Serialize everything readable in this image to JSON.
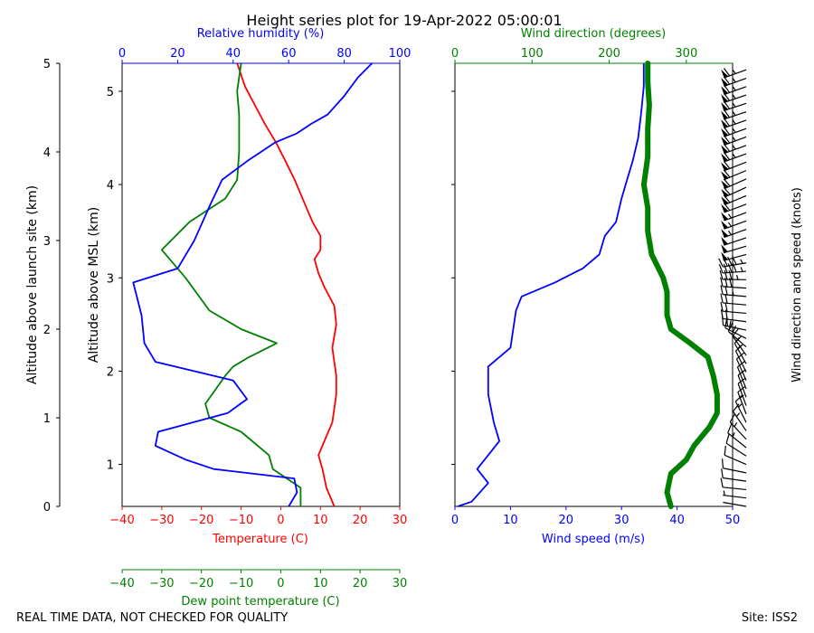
{
  "chart_data": {
    "type": "line",
    "title": "Height series plot for 19-Apr-2022 05:00:01",
    "footer_left": "REAL TIME DATA, NOT CHECKED FOR QUALITY",
    "footer_right": "Site: ISS2",
    "colors": {
      "temperature": "#ff0000",
      "dewpoint": "#008000",
      "humidity": "#0000ff",
      "wind_speed": "#0000ff",
      "wind_direction": "#008000",
      "barb": "#000000",
      "axis": "#000000"
    },
    "left_panel": {
      "ylabel_launch": "Altitude above launch site (km)",
      "ylabel_msl": "Altitude above MSL (km)",
      "temperature_axis": {
        "label": "Temperature (C)",
        "range": [
          -40,
          30
        ],
        "ticks": [
          "−40",
          "−30",
          "−20",
          "−10",
          "0",
          "10",
          "20",
          "30"
        ]
      },
      "dewpoint_axis": {
        "label": "Dew point temperature (C)",
        "range": [
          -40,
          30
        ],
        "ticks": [
          "−40",
          "−30",
          "−20",
          "−10",
          "0",
          "10",
          "20",
          "30"
        ]
      },
      "humidity_axis": {
        "label": "Relative humidity (%)",
        "range": [
          0,
          100
        ],
        "ticks": [
          "0",
          "20",
          "40",
          "60",
          "80",
          "100"
        ]
      },
      "launch_axis": {
        "range": [
          0,
          5
        ],
        "ticks": [
          "0",
          "1",
          "2",
          "3",
          "4",
          "5"
        ]
      },
      "msl_axis": {
        "range": [
          0.55,
          5.3
        ],
        "ticks": [
          "1",
          "2",
          "3",
          "4",
          "5"
        ]
      },
      "series": [
        {
          "name": "Temperature",
          "unit": "C",
          "points": [
            [
              13.5,
              0.55
            ],
            [
              11.5,
              0.75
            ],
            [
              10.5,
              0.95
            ],
            [
              9.5,
              1.1
            ],
            [
              10.5,
              1.2
            ],
            [
              13,
              1.45
            ],
            [
              14,
              1.75
            ],
            [
              14,
              1.95
            ],
            [
              13,
              2.25
            ],
            [
              14,
              2.5
            ],
            [
              13.5,
              2.7
            ],
            [
              11,
              2.9
            ],
            [
              9.5,
              3.05
            ],
            [
              8.5,
              3.2
            ],
            [
              10,
              3.3
            ],
            [
              10,
              3.45
            ],
            [
              8,
              3.6
            ],
            [
              6,
              3.8
            ],
            [
              3.5,
              4.05
            ],
            [
              1.2,
              4.25
            ],
            [
              -1.2,
              4.45
            ],
            [
              -4,
              4.65
            ],
            [
              -6.5,
              4.85
            ],
            [
              -9,
              5.05
            ],
            [
              -11,
              5.3
            ]
          ]
        },
        {
          "name": "Dew point temperature",
          "unit": "C",
          "points": [
            [
              5,
              0.55
            ],
            [
              5,
              0.75
            ],
            [
              -2,
              0.95
            ],
            [
              -3,
              1.1
            ],
            [
              -10,
              1.35
            ],
            [
              -18,
              1.5
            ],
            [
              -19,
              1.65
            ],
            [
              -14,
              1.95
            ],
            [
              -12,
              2.05
            ],
            [
              -8,
              2.15
            ],
            [
              -1,
              2.3
            ],
            [
              -10,
              2.45
            ],
            [
              -18,
              2.65
            ],
            [
              -24,
              3.0
            ],
            [
              -30,
              3.3
            ],
            [
              -23,
              3.6
            ],
            [
              -14,
              3.85
            ],
            [
              -11,
              4.05
            ],
            [
              -10.5,
              4.35
            ],
            [
              -10.5,
              4.75
            ],
            [
              -11,
              5.0
            ],
            [
              -10,
              5.3
            ]
          ]
        },
        {
          "name": "Relative humidity",
          "unit": "%",
          "points": [
            [
              60,
              0.55
            ],
            [
              63,
              0.7
            ],
            [
              62,
              0.85
            ],
            [
              33,
              0.95
            ],
            [
              23,
              1.05
            ],
            [
              12,
              1.2
            ],
            [
              13,
              1.35
            ],
            [
              38,
              1.55
            ],
            [
              45,
              1.7
            ],
            [
              40,
              1.9
            ],
            [
              12,
              2.1
            ],
            [
              8,
              2.3
            ],
            [
              7,
              2.6
            ],
            [
              4,
              2.95
            ],
            [
              20,
              3.1
            ],
            [
              26,
              3.4
            ],
            [
              32,
              3.8
            ],
            [
              36,
              4.05
            ],
            [
              45,
              4.25
            ],
            [
              55,
              4.45
            ],
            [
              63,
              4.55
            ],
            [
              68,
              4.65
            ],
            [
              74,
              4.75
            ],
            [
              80,
              4.95
            ],
            [
              85,
              5.15
            ],
            [
              90,
              5.3
            ]
          ]
        }
      ]
    },
    "right_panel": {
      "wind_speed_axis": {
        "label": "Wind speed (m/s)",
        "range": [
          0,
          50
        ],
        "ticks": [
          "0",
          "10",
          "20",
          "30",
          "40",
          "50"
        ]
      },
      "wind_direction_axis": {
        "label": "Wind direction (degrees)",
        "range": [
          0,
          360
        ],
        "ticks": [
          "0",
          "100",
          "200",
          "300"
        ]
      },
      "barb_label": "Wind direction and speed (knots)",
      "series": [
        {
          "name": "Wind speed",
          "unit": "m/s",
          "points": [
            [
              0.5,
              0.55
            ],
            [
              3,
              0.6
            ],
            [
              6,
              0.8
            ],
            [
              4,
              0.95
            ],
            [
              6,
              1.1
            ],
            [
              8,
              1.25
            ],
            [
              7,
              1.45
            ],
            [
              6,
              1.75
            ],
            [
              6,
              2.05
            ],
            [
              10,
              2.25
            ],
            [
              11,
              2.65
            ],
            [
              12,
              2.8
            ],
            [
              18,
              2.95
            ],
            [
              23,
              3.1
            ],
            [
              26,
              3.25
            ],
            [
              27,
              3.45
            ],
            [
              29,
              3.6
            ],
            [
              30,
              3.85
            ],
            [
              31,
              4.05
            ],
            [
              32,
              4.25
            ],
            [
              33,
              4.5
            ],
            [
              33.5,
              4.75
            ],
            [
              34,
              5.05
            ],
            [
              34,
              5.3
            ]
          ]
        },
        {
          "name": "Wind direction",
          "unit": "degrees",
          "points": [
            [
              280,
              0.55
            ],
            [
              275,
              0.7
            ],
            [
              280,
              0.9
            ],
            [
              300,
              1.05
            ],
            [
              310,
              1.2
            ],
            [
              330,
              1.4
            ],
            [
              340,
              1.55
            ],
            [
              340,
              1.75
            ],
            [
              335,
              1.95
            ],
            [
              328,
              2.15
            ],
            [
              305,
              2.3
            ],
            [
              280,
              2.45
            ],
            [
              275,
              2.6
            ],
            [
              275,
              2.85
            ],
            [
              270,
              3.0
            ],
            [
              255,
              3.25
            ],
            [
              250,
              3.5
            ],
            [
              250,
              3.75
            ],
            [
              245,
              4.0
            ],
            [
              250,
              4.3
            ],
            [
              250,
              4.6
            ],
            [
              252,
              4.85
            ],
            [
              250,
              5.1
            ],
            [
              250,
              5.3
            ]
          ]
        }
      ]
    }
  }
}
